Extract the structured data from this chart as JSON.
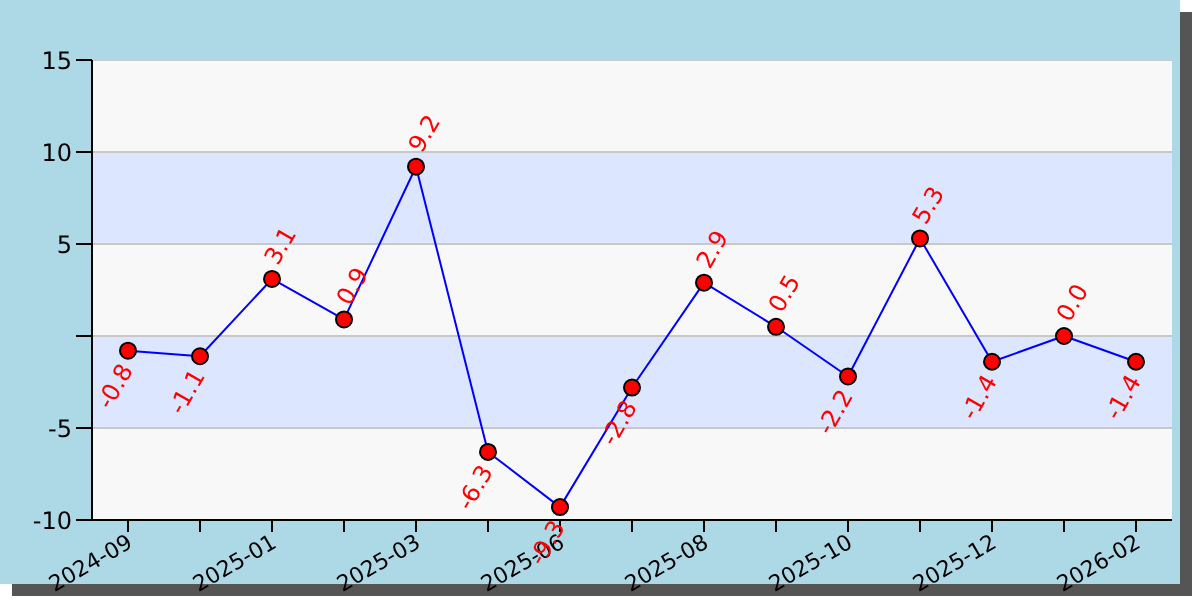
{
  "chart_data": {
    "type": "line",
    "categories": [
      "2024-09",
      null,
      "2025-01",
      null,
      "2025-03",
      null,
      "2025-06",
      null,
      "2025-08",
      null,
      "2025-10",
      null,
      "2025-12",
      null,
      "2026-02"
    ],
    "series": [
      {
        "color": "#0000ff",
        "colors": [
          "#ff0000",
          "#ff0000",
          "#ff0000",
          "#ff0000",
          "#ff0000",
          "#ff0000",
          "#ff0000",
          "#ff0000",
          "#ff0000",
          "#ff0000",
          "#ff0000",
          "#ff0000",
          "#ff0000",
          "#ff0000",
          "#ff0000"
        ],
        "values": [
          -0.8,
          -1.1,
          3.1,
          0.9,
          9.2,
          -6.3,
          -9.3,
          -2.8,
          2.9,
          0.5,
          -2.2,
          5.3,
          -1.4,
          0.0,
          -1.4
        ],
        "value_labels": [
          "-0.8",
          "-1.1",
          "3.1",
          "0.9",
          "9.2",
          "-6.3",
          "-9.3",
          "-2.8",
          "2.9",
          "0.5",
          "-2.2",
          "5.3",
          "-1.4",
          "0.0",
          "-1.4"
        ]
      }
    ],
    "ylim": [
      -10,
      15
    ],
    "yticks": [
      -10,
      -5,
      {
        "value": 0,
        "label": null
      },
      5,
      10,
      15
    ],
    "bands": [
      {
        "axis": "y",
        "from": 5,
        "to": 10,
        "color": "#dde6ff"
      },
      {
        "axis": "y",
        "from": -5,
        "to": 0,
        "color": "#dde6ff"
      }
    ],
    "grid": "y",
    "marker": "circle",
    "line_style": "solid",
    "legend": false
  }
}
